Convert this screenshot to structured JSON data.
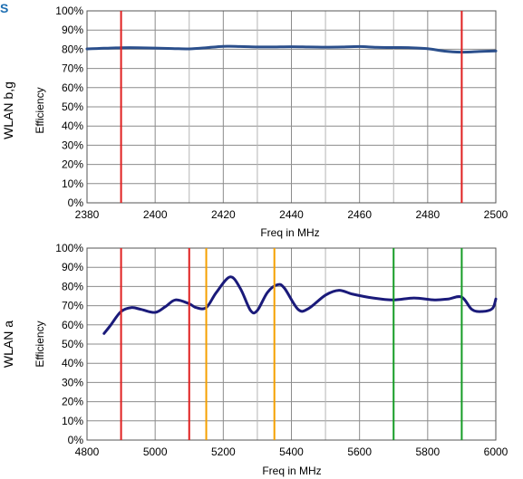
{
  "corner_mark": "S",
  "chart_data": [
    {
      "type": "line",
      "row_label": "WLAN b,g",
      "xlabel": "Freq in MHz",
      "ylabel": "Efficiency",
      "xlim": [
        2380,
        2500
      ],
      "ylim": [
        0,
        100
      ],
      "x_ticks": [
        2380,
        2400,
        2420,
        2440,
        2460,
        2480,
        2500
      ],
      "y_ticks": [
        "0%",
        "10%",
        "20%",
        "30%",
        "40%",
        "50%",
        "60%",
        "70%",
        "80%",
        "90%",
        "100%"
      ],
      "grid": true,
      "series": [
        {
          "color": "#2b4f8c",
          "x": [
            2380,
            2385,
            2390,
            2395,
            2400,
            2405,
            2410,
            2415,
            2420,
            2425,
            2430,
            2435,
            2440,
            2445,
            2450,
            2455,
            2460,
            2465,
            2470,
            2475,
            2480,
            2485,
            2490,
            2495,
            2500
          ],
          "values": [
            80.2,
            80.5,
            80.8,
            80.8,
            80.6,
            80.4,
            80.2,
            80.8,
            81.5,
            81.4,
            81.2,
            81.2,
            81.3,
            81.2,
            81.1,
            81.2,
            81.4,
            81.0,
            80.9,
            80.8,
            80.3,
            79.0,
            78.5,
            78.8,
            79.1
          ]
        }
      ],
      "markers": [
        {
          "x": 2390,
          "color": "#e02020"
        },
        {
          "x": 2490,
          "color": "#e02020"
        }
      ]
    },
    {
      "type": "line",
      "row_label": "WLAN a",
      "xlabel": "Freq in MHz",
      "ylabel": "Efficiency",
      "xlim": [
        4800,
        6000
      ],
      "ylim": [
        0,
        100
      ],
      "x_ticks": [
        4800,
        5000,
        5200,
        5400,
        5600,
        5800,
        6000
      ],
      "y_ticks": [
        "0%",
        "10%",
        "20%",
        "30%",
        "40%",
        "50%",
        "60%",
        "70%",
        "80%",
        "90%",
        "100%"
      ],
      "grid": true,
      "series": [
        {
          "color": "#1a1a7a",
          "x": [
            4850,
            4870,
            4900,
            4930,
            4960,
            5000,
            5030,
            5060,
            5100,
            5120,
            5150,
            5180,
            5220,
            5250,
            5280,
            5300,
            5330,
            5360,
            5380,
            5420,
            5450,
            5500,
            5540,
            5580,
            5640,
            5700,
            5760,
            5820,
            5860,
            5900,
            5930,
            5960,
            5990,
            6000
          ],
          "values": [
            55.5,
            60.0,
            67.0,
            69.0,
            68.0,
            66.5,
            69.5,
            73.0,
            71.0,
            69.0,
            69.0,
            77.0,
            85.0,
            79.0,
            67.5,
            67.5,
            77.0,
            81.0,
            79.0,
            68.0,
            68.5,
            75.5,
            78.0,
            76.0,
            74.0,
            73.0,
            74.0,
            73.0,
            73.5,
            74.5,
            68.0,
            67.0,
            68.5,
            73.5
          ]
        }
      ],
      "markers": [
        {
          "x": 4900,
          "color": "#e02020"
        },
        {
          "x": 5100,
          "color": "#e02020"
        },
        {
          "x": 5150,
          "color": "#f5a000"
        },
        {
          "x": 5350,
          "color": "#f5a000"
        },
        {
          "x": 5700,
          "color": "#159c25"
        },
        {
          "x": 5900,
          "color": "#159c25"
        }
      ]
    }
  ]
}
